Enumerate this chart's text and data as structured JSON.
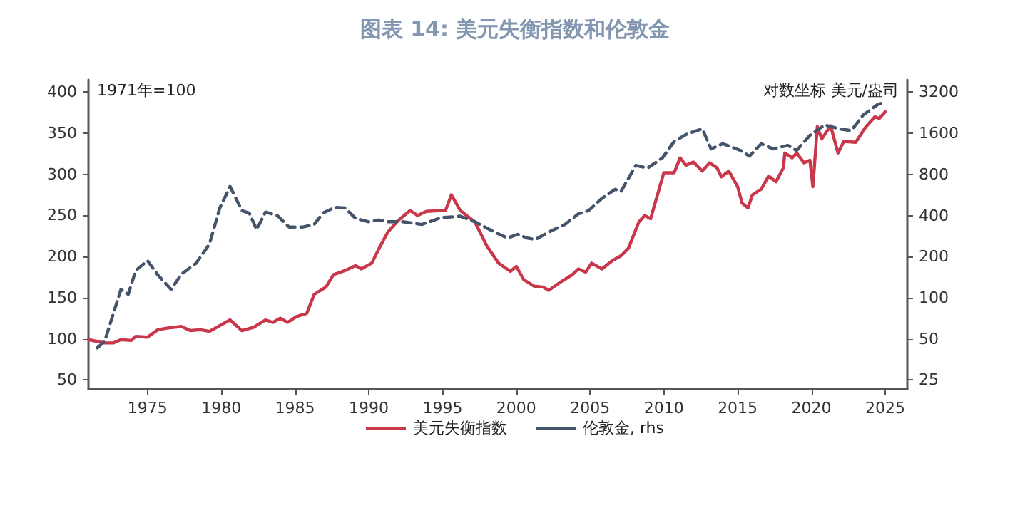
{
  "chart_data": {
    "type": "line",
    "title": "图表 14: 美元失衡指数和伦敦金",
    "annotations": [
      "1971年=100",
      "对数坐标 美元/盎司"
    ],
    "xlim": [
      1971,
      2026.5
    ],
    "xticks": [
      1975,
      1980,
      1985,
      1990,
      1995,
      2000,
      2005,
      2010,
      2015,
      2020,
      2025
    ],
    "ylim": [
      39,
      415
    ],
    "yticks": [
      50,
      100,
      150,
      200,
      250,
      300,
      350,
      400
    ],
    "y2lim": [
      21.5,
      3940
    ],
    "y2ticks": [
      25,
      50,
      100,
      200,
      400,
      800,
      1600,
      3200
    ],
    "log": "y2",
    "grid": false,
    "legend": "bottom",
    "marker": "none",
    "series": [
      {
        "name": "美元失衡指数",
        "color": "#c8374a",
        "line_style": "solid",
        "x": [
          1971.0,
          1972.1,
          1972.7,
          1973.2,
          1973.9,
          1974.2,
          1975.0,
          1975.7,
          1976.3,
          1977.3,
          1977.9,
          1978.6,
          1979.2,
          1979.7,
          1980.6,
          1981.4,
          1982.2,
          1983.0,
          1983.5,
          1984.0,
          1984.5,
          1985.1,
          1985.8,
          1986.3,
          1987.1,
          1987.6,
          1988.4,
          1989.1,
          1989.5,
          1990.2,
          1990.7,
          1991.3,
          1992.0,
          1992.8,
          1993.3,
          1993.9,
          1994.9,
          1995.2,
          1995.6,
          1996.2,
          1997.2,
          1998.0,
          1998.8,
          1999.6,
          2000.0,
          2000.5,
          2001.2,
          2001.8,
          2002.2,
          2003.0,
          2003.8,
          2004.2,
          2004.7,
          2005.1,
          2005.8,
          2006.5,
          2007.1,
          2007.6,
          2008.3,
          2008.7,
          2009.1,
          2010.0,
          2010.7,
          2011.1,
          2011.5,
          2012.0,
          2012.6,
          2013.1,
          2013.6,
          2013.9,
          2014.4,
          2015.0,
          2015.3,
          2015.7,
          2016.0,
          2016.6,
          2017.1,
          2017.6,
          2018.1,
          2018.2,
          2018.7,
          2019.0,
          2019.5,
          2019.9,
          2020.1,
          2020.4,
          2020.7,
          2021.3,
          2021.8,
          2022.2,
          2023.0,
          2023.7,
          2024.3,
          2024.6,
          2025.0
        ],
        "values": [
          99,
          95,
          95,
          99,
          98,
          103,
          102,
          111,
          113,
          115,
          110,
          111,
          109,
          114,
          123,
          110,
          114,
          123,
          120,
          125,
          120,
          127,
          131,
          154,
          163,
          178,
          183,
          189,
          185,
          192,
          210,
          230,
          244,
          256,
          250,
          255,
          256,
          256,
          275,
          256,
          242,
          213,
          192,
          182,
          188,
          172,
          164,
          163,
          159,
          169,
          178,
          185,
          181,
          192,
          185,
          195,
          201,
          210,
          242,
          250,
          246,
          302,
          302,
          320,
          311,
          315,
          304,
          314,
          308,
          297,
          304,
          285,
          265,
          259,
          275,
          282,
          298,
          291,
          308,
          326,
          320,
          326,
          314,
          317,
          285,
          358,
          343,
          359,
          326,
          340,
          339,
          358,
          370,
          368,
          376
        ]
      },
      {
        "name": "伦敦金, rhs",
        "color": "#44546a",
        "line_style": "dashed",
        "axis": "y2",
        "x": [
          1971.6,
          1972.1,
          1972.5,
          1973.2,
          1973.7,
          1974.2,
          1975.0,
          1975.7,
          1976.6,
          1977.3,
          1978.3,
          1979.2,
          1979.9,
          1980.6,
          1981.4,
          1981.9,
          1982.4,
          1983.0,
          1983.8,
          1984.6,
          1985.5,
          1986.3,
          1986.9,
          1987.7,
          1988.4,
          1989.1,
          1990.0,
          1990.7,
          1991.3,
          1992.3,
          1993.6,
          1994.9,
          1996.2,
          1997.2,
          1998.5,
          1999.4,
          2000.1,
          2000.7,
          2001.3,
          2002.2,
          2003.3,
          2004.2,
          2004.9,
          2005.8,
          2006.7,
          2007.1,
          2008.1,
          2008.9,
          2009.9,
          2010.7,
          2011.6,
          2012.6,
          2013.2,
          2014.0,
          2015.2,
          2015.8,
          2016.6,
          2017.4,
          2018.4,
          2019.0,
          2019.9,
          2020.9,
          2021.9,
          2022.7,
          2023.5,
          2024.5,
          2024.8
        ],
        "values": [
          43,
          48,
          66,
          115,
          106,
          158,
          187,
          147,
          115,
          149,
          179,
          247,
          454,
          652,
          434,
          417,
          316,
          424,
          400,
          329,
          329,
          344,
          417,
          459,
          454,
          381,
          360,
          371,
          360,
          360,
          344,
          386,
          395,
          360,
          303,
          274,
          291,
          274,
          267,
          303,
          344,
          411,
          434,
          534,
          622,
          600,
          930,
          890,
          1056,
          1393,
          1585,
          1722,
          1228,
          1341,
          1197,
          1088,
          1341,
          1228,
          1305,
          1197,
          1545,
          1840,
          1722,
          1672,
          2173,
          2600,
          2660
        ]
      }
    ]
  }
}
